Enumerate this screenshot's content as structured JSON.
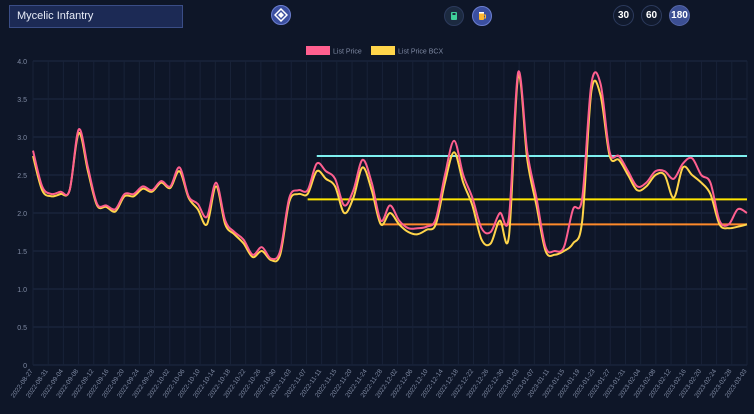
{
  "header": {
    "card_name": "Mycelic Infantry",
    "icons": [
      "diamond-logo-icon",
      "card-pack-icon",
      "beer-mug-icon"
    ],
    "ranges": [
      "30",
      "60",
      "180"
    ],
    "active_range": "180"
  },
  "colors": {
    "background": "#0e1628",
    "list_price": "#ff5f8f",
    "list_price_bcx": "#ffd54a",
    "line_cyan": "#7ef0f0",
    "line_yellow": "#ffe600",
    "line_orange": "#ff8a2a"
  },
  "chart_data": {
    "type": "line",
    "legend": [
      "List Price",
      "List Price BCX"
    ],
    "ylim": [
      0,
      4
    ],
    "yticks": [
      "0",
      "0.5",
      "1.0",
      "1.5",
      "2.0",
      "2.5",
      "3.0",
      "3.5",
      "4.0"
    ],
    "xticks": [
      "2022-08-27",
      "2022-08-31",
      "2022-09-04",
      "2022-09-08",
      "2022-09-12",
      "2022-09-16",
      "2022-09-20",
      "2022-09-24",
      "2022-09-28",
      "2022-10-02",
      "2022-10-06",
      "2022-10-10",
      "2022-10-14",
      "2022-10-18",
      "2022-10-22",
      "2022-10-26",
      "2022-10-30",
      "2022-11-03",
      "2022-11-07",
      "2022-11-11",
      "2022-11-15",
      "2022-11-20",
      "2022-11-24",
      "2022-11-28",
      "2022-12-02",
      "2022-12-06",
      "2022-12-10",
      "2022-12-14",
      "2022-12-18",
      "2022-12-22",
      "2022-12-26",
      "2022-12-30",
      "2023-01-03",
      "2023-01-07",
      "2023-01-11",
      "2023-01-15",
      "2023-01-19",
      "2023-01-23",
      "2023-01-27",
      "2023-01-31",
      "2023-02-04",
      "2023-02-08",
      "2023-02-12",
      "2023-02-16",
      "2023-02-20",
      "2023-02-24",
      "2023-02-28",
      "2023-03-03"
    ],
    "series": [
      {
        "name": "List Price",
        "points": [
          [
            0,
            2.82
          ],
          [
            1,
            2.35
          ],
          [
            2,
            2.25
          ],
          [
            3,
            2.28
          ],
          [
            4,
            2.3
          ],
          [
            5,
            3.1
          ],
          [
            6,
            2.6
          ],
          [
            7,
            2.12
          ],
          [
            8,
            2.1
          ],
          [
            9,
            2.05
          ],
          [
            10,
            2.25
          ],
          [
            11,
            2.25
          ],
          [
            12,
            2.35
          ],
          [
            13,
            2.3
          ],
          [
            14,
            2.42
          ],
          [
            15,
            2.35
          ],
          [
            16,
            2.6
          ],
          [
            17,
            2.22
          ],
          [
            18,
            2.12
          ],
          [
            19,
            1.95
          ],
          [
            20,
            2.4
          ],
          [
            21,
            1.9
          ],
          [
            22,
            1.75
          ],
          [
            23,
            1.65
          ],
          [
            24,
            1.45
          ],
          [
            25,
            1.55
          ],
          [
            26,
            1.4
          ],
          [
            27,
            1.5
          ],
          [
            28,
            2.2
          ],
          [
            29,
            2.3
          ],
          [
            30,
            2.3
          ],
          [
            31,
            2.65
          ],
          [
            32,
            2.55
          ],
          [
            33,
            2.45
          ],
          [
            34,
            2.1
          ],
          [
            35,
            2.3
          ],
          [
            36,
            2.7
          ],
          [
            37,
            2.4
          ],
          [
            38,
            1.9
          ],
          [
            39,
            2.1
          ],
          [
            40,
            1.9
          ],
          [
            41,
            1.8
          ],
          [
            42,
            1.8
          ],
          [
            43,
            1.82
          ],
          [
            44,
            1.92
          ],
          [
            45,
            2.5
          ],
          [
            46,
            2.95
          ],
          [
            47,
            2.5
          ],
          [
            48,
            2.2
          ],
          [
            49,
            1.8
          ],
          [
            50,
            1.75
          ],
          [
            51,
            2.0
          ],
          [
            52,
            1.95
          ],
          [
            53,
            3.85
          ],
          [
            54,
            2.8
          ],
          [
            55,
            2.2
          ],
          [
            56,
            1.55
          ],
          [
            57,
            1.5
          ],
          [
            58,
            1.55
          ],
          [
            59,
            2.05
          ],
          [
            60,
            2.2
          ],
          [
            61,
            3.7
          ],
          [
            62,
            3.7
          ],
          [
            63,
            2.8
          ],
          [
            64,
            2.75
          ],
          [
            65,
            2.55
          ],
          [
            66,
            2.35
          ],
          [
            67,
            2.4
          ],
          [
            68,
            2.55
          ],
          [
            69,
            2.55
          ],
          [
            70,
            2.45
          ],
          [
            71,
            2.65
          ],
          [
            72,
            2.72
          ],
          [
            73,
            2.5
          ],
          [
            74,
            2.4
          ],
          [
            75,
            1.9
          ],
          [
            76,
            1.85
          ],
          [
            77,
            2.05
          ],
          [
            78,
            2.0
          ]
        ]
      },
      {
        "name": "List Price BCX",
        "points": [
          [
            0,
            2.75
          ],
          [
            1,
            2.3
          ],
          [
            2,
            2.22
          ],
          [
            3,
            2.25
          ],
          [
            4,
            2.3
          ],
          [
            5,
            3.05
          ],
          [
            6,
            2.55
          ],
          [
            7,
            2.1
          ],
          [
            8,
            2.08
          ],
          [
            9,
            2.02
          ],
          [
            10,
            2.22
          ],
          [
            11,
            2.22
          ],
          [
            12,
            2.32
          ],
          [
            13,
            2.28
          ],
          [
            14,
            2.4
          ],
          [
            15,
            2.33
          ],
          [
            16,
            2.55
          ],
          [
            17,
            2.2
          ],
          [
            18,
            2.05
          ],
          [
            19,
            1.85
          ],
          [
            20,
            2.35
          ],
          [
            21,
            1.85
          ],
          [
            22,
            1.72
          ],
          [
            23,
            1.6
          ],
          [
            24,
            1.42
          ],
          [
            25,
            1.5
          ],
          [
            26,
            1.38
          ],
          [
            27,
            1.45
          ],
          [
            28,
            2.15
          ],
          [
            29,
            2.25
          ],
          [
            30,
            2.25
          ],
          [
            31,
            2.55
          ],
          [
            32,
            2.45
          ],
          [
            33,
            2.35
          ],
          [
            34,
            2.0
          ],
          [
            35,
            2.2
          ],
          [
            36,
            2.6
          ],
          [
            37,
            2.3
          ],
          [
            38,
            1.85
          ],
          [
            39,
            2.0
          ],
          [
            40,
            1.85
          ],
          [
            41,
            1.75
          ],
          [
            42,
            1.72
          ],
          [
            43,
            1.78
          ],
          [
            44,
            1.85
          ],
          [
            45,
            2.4
          ],
          [
            46,
            2.8
          ],
          [
            47,
            2.4
          ],
          [
            48,
            2.1
          ],
          [
            49,
            1.65
          ],
          [
            50,
            1.6
          ],
          [
            51,
            1.9
          ],
          [
            52,
            1.7
          ],
          [
            53,
            3.8
          ],
          [
            54,
            2.7
          ],
          [
            55,
            2.1
          ],
          [
            56,
            1.5
          ],
          [
            57,
            1.45
          ],
          [
            58,
            1.5
          ],
          [
            59,
            1.6
          ],
          [
            60,
            1.9
          ],
          [
            61,
            3.6
          ],
          [
            62,
            3.55
          ],
          [
            63,
            2.75
          ],
          [
            64,
            2.7
          ],
          [
            65,
            2.5
          ],
          [
            66,
            2.3
          ],
          [
            67,
            2.35
          ],
          [
            68,
            2.5
          ],
          [
            69,
            2.5
          ],
          [
            70,
            2.2
          ],
          [
            71,
            2.6
          ],
          [
            72,
            2.5
          ],
          [
            73,
            2.4
          ],
          [
            74,
            2.25
          ],
          [
            75,
            1.85
          ],
          [
            76,
            1.8
          ],
          [
            77,
            1.82
          ],
          [
            78,
            1.85
          ]
        ]
      }
    ],
    "reference_lines": [
      {
        "value": 2.75,
        "x_start": 31,
        "x_end": 78,
        "color": "#7ef0f0"
      },
      {
        "value": 2.18,
        "x_start": 30,
        "x_end": 78,
        "color": "#ffe600"
      },
      {
        "value": 1.85,
        "x_start": 38,
        "x_end": 78,
        "color": "#ff8a2a"
      }
    ],
    "x_count": 79,
    "grid": true,
    "legend_position": "top-center"
  }
}
